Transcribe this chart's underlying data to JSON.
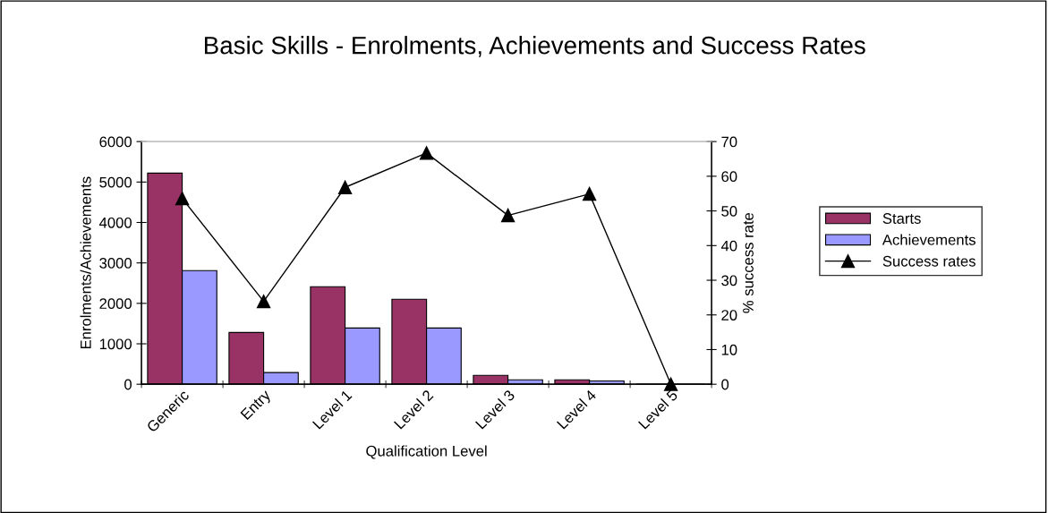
{
  "chart_data": {
    "type": "bar",
    "title": "Basic Skills - Enrolments, Achievements and Success Rates",
    "xlabel": "Qualification Level",
    "ylabel": "Enrolments/Achievements",
    "y2label": "% success rate",
    "categories": [
      "Generic",
      "Entry",
      "Level 1",
      "Level 2",
      "Level 3",
      "Level 4",
      "Level 5"
    ],
    "series": [
      {
        "name": "Starts",
        "color": "#993366",
        "values": [
          5220,
          1280,
          2410,
          2100,
          220,
          110,
          0
        ]
      },
      {
        "name": "Achievements",
        "color": "#9999ff",
        "values": [
          2810,
          290,
          1390,
          1390,
          110,
          80,
          0
        ]
      },
      {
        "name": "Success rates",
        "type": "line",
        "axis": "y2",
        "color": "#000000",
        "marker": "triangle",
        "values": [
          53.6,
          23.9,
          56.8,
          66.7,
          48.7,
          54.9,
          0
        ]
      }
    ],
    "ylim": [
      0,
      6000
    ],
    "yticks": [
      0,
      1000,
      2000,
      3000,
      4000,
      5000,
      6000
    ],
    "y2lim": [
      0,
      70
    ],
    "y2ticks": [
      0,
      10,
      20,
      30,
      40,
      50,
      60,
      70
    ],
    "grid": false,
    "legend": "right"
  }
}
